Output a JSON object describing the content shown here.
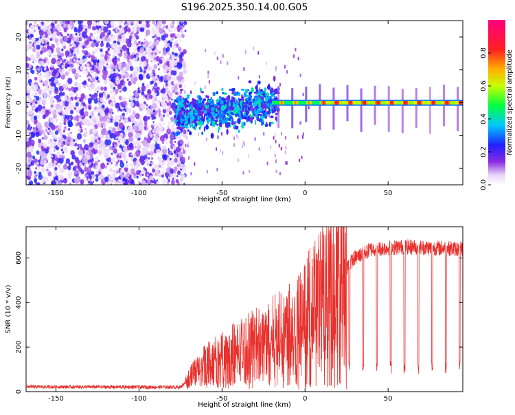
{
  "title": "S196.2025.350.14.00.G05",
  "chart_data": [
    {
      "type": "heatmap",
      "xlabel": "Height of straight line (km)",
      "ylabel": "Frequency (Hz)",
      "xlim": [
        -168,
        95
      ],
      "ylim": [
        -25,
        25
      ],
      "xticks": [
        -150,
        -100,
        -50,
        0,
        50
      ],
      "yticks": [
        -20,
        -10,
        0,
        10,
        20
      ],
      "colorbar": {
        "label": "Normalized spectral amplitude",
        "range": [
          0,
          1
        ],
        "ticks": [
          0.0,
          0.2,
          0.4,
          0.6,
          0.8
        ],
        "tick_labels": [
          "0.0",
          "0.2",
          "0.4",
          "0.6",
          "0.8"
        ],
        "colormap": "rainbow (white, purple, blue, cyan, green, yellow, red, magenta)"
      },
      "features": [
        {
          "description": "scattered low-amplitude purple noise across all frequencies",
          "x_range": [
            -168,
            -78
          ],
          "amplitude": [
            0.05,
            0.3
          ]
        },
        {
          "description": "broad noisy band near 0 Hz",
          "x_range": [
            -78,
            -20
          ],
          "freq_center": -3,
          "amplitude": [
            0.2,
            0.5
          ]
        },
        {
          "description": "narrow strong band near 0 Hz",
          "x_range": [
            -20,
            95
          ],
          "freq_center": 0,
          "amplitude": [
            0.5,
            0.95
          ]
        }
      ]
    },
    {
      "type": "line",
      "xlabel": "Height of straight line (km)",
      "ylabel": "SNR (10 * v/v)",
      "xlim": [
        -168,
        95
      ],
      "ylim": [
        0,
        740
      ],
      "xticks": [
        -150,
        -100,
        -50,
        0,
        50
      ],
      "yticks": [
        0,
        200,
        400,
        600
      ],
      "series_color": "#e8302c",
      "series": [
        {
          "name": "SNR",
          "profile": [
            [
              -168,
              22
            ],
            [
              -75,
              20
            ],
            [
              -70,
              60
            ],
            [
              -60,
              120
            ],
            [
              -50,
              150
            ],
            [
              -40,
              180
            ],
            [
              -30,
              210
            ],
            [
              -20,
              240
            ],
            [
              -10,
              280
            ],
            [
              0,
              330
            ],
            [
              10,
              430
            ],
            [
              20,
              520
            ],
            [
              30,
              600
            ],
            [
              40,
              640
            ],
            [
              60,
              650
            ],
            [
              95,
              640
            ]
          ]
        }
      ]
    }
  ]
}
